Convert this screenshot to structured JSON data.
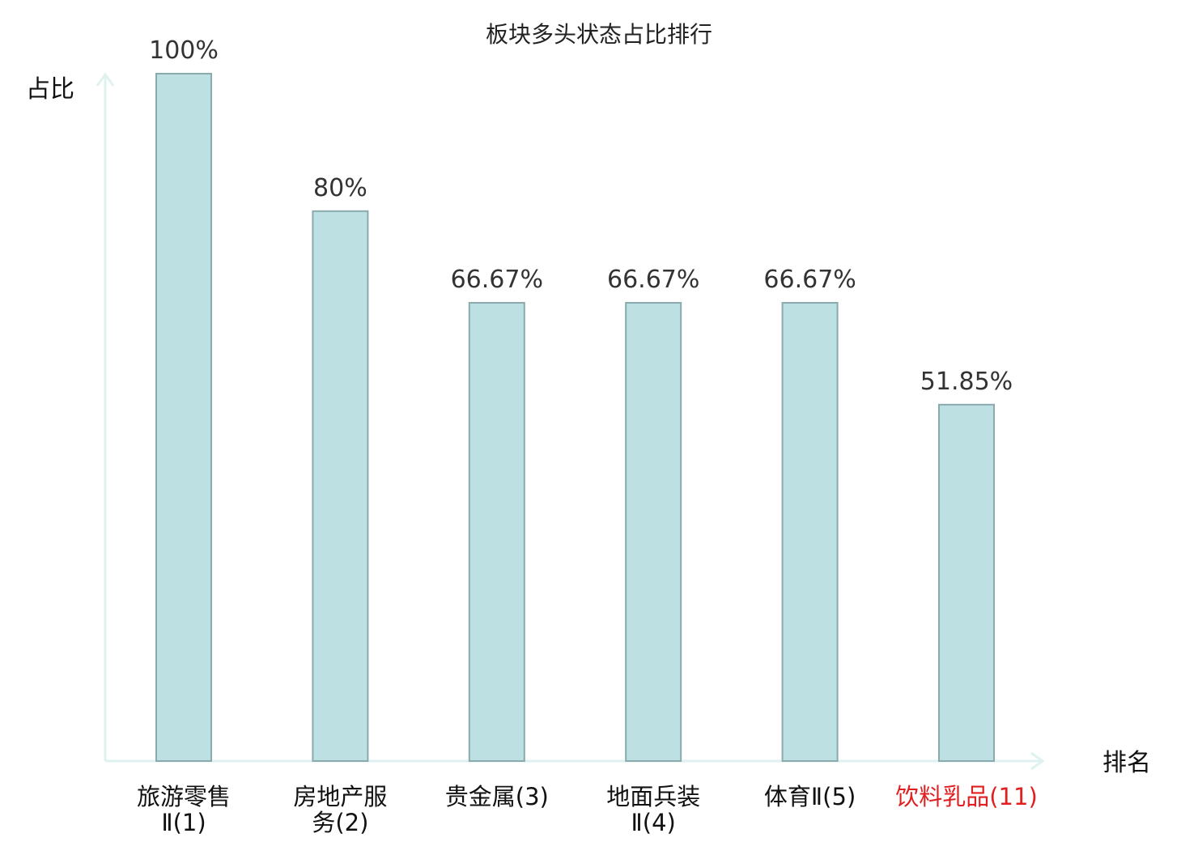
{
  "chart_data": {
    "type": "bar",
    "title": "板块多头状态占比排行",
    "ylabel": "占比",
    "xlabel": "排名",
    "ylim": [
      0,
      100
    ],
    "grid": false,
    "categories": [
      [
        "旅游零售",
        "Ⅱ(1)"
      ],
      [
        "房地产服",
        "务(2)"
      ],
      [
        "贵金属(3)"
      ],
      [
        "地面兵装",
        "Ⅱ(4)"
      ],
      [
        "体育Ⅱ(5)"
      ],
      [
        "饮料乳品(11)"
      ]
    ],
    "values": [
      100,
      80,
      66.67,
      66.67,
      66.67,
      51.85
    ],
    "data_labels": [
      "100%",
      "80%",
      "66.67%",
      "66.67%",
      "66.67%",
      "51.85%"
    ],
    "highlight_index": 5,
    "colors": {
      "bar_fill": "#bde0e3",
      "bar_stroke": "#8aaaae",
      "axis": "#e0f2ef",
      "category_text": "#111111",
      "highlight_text": "#e02020"
    }
  }
}
